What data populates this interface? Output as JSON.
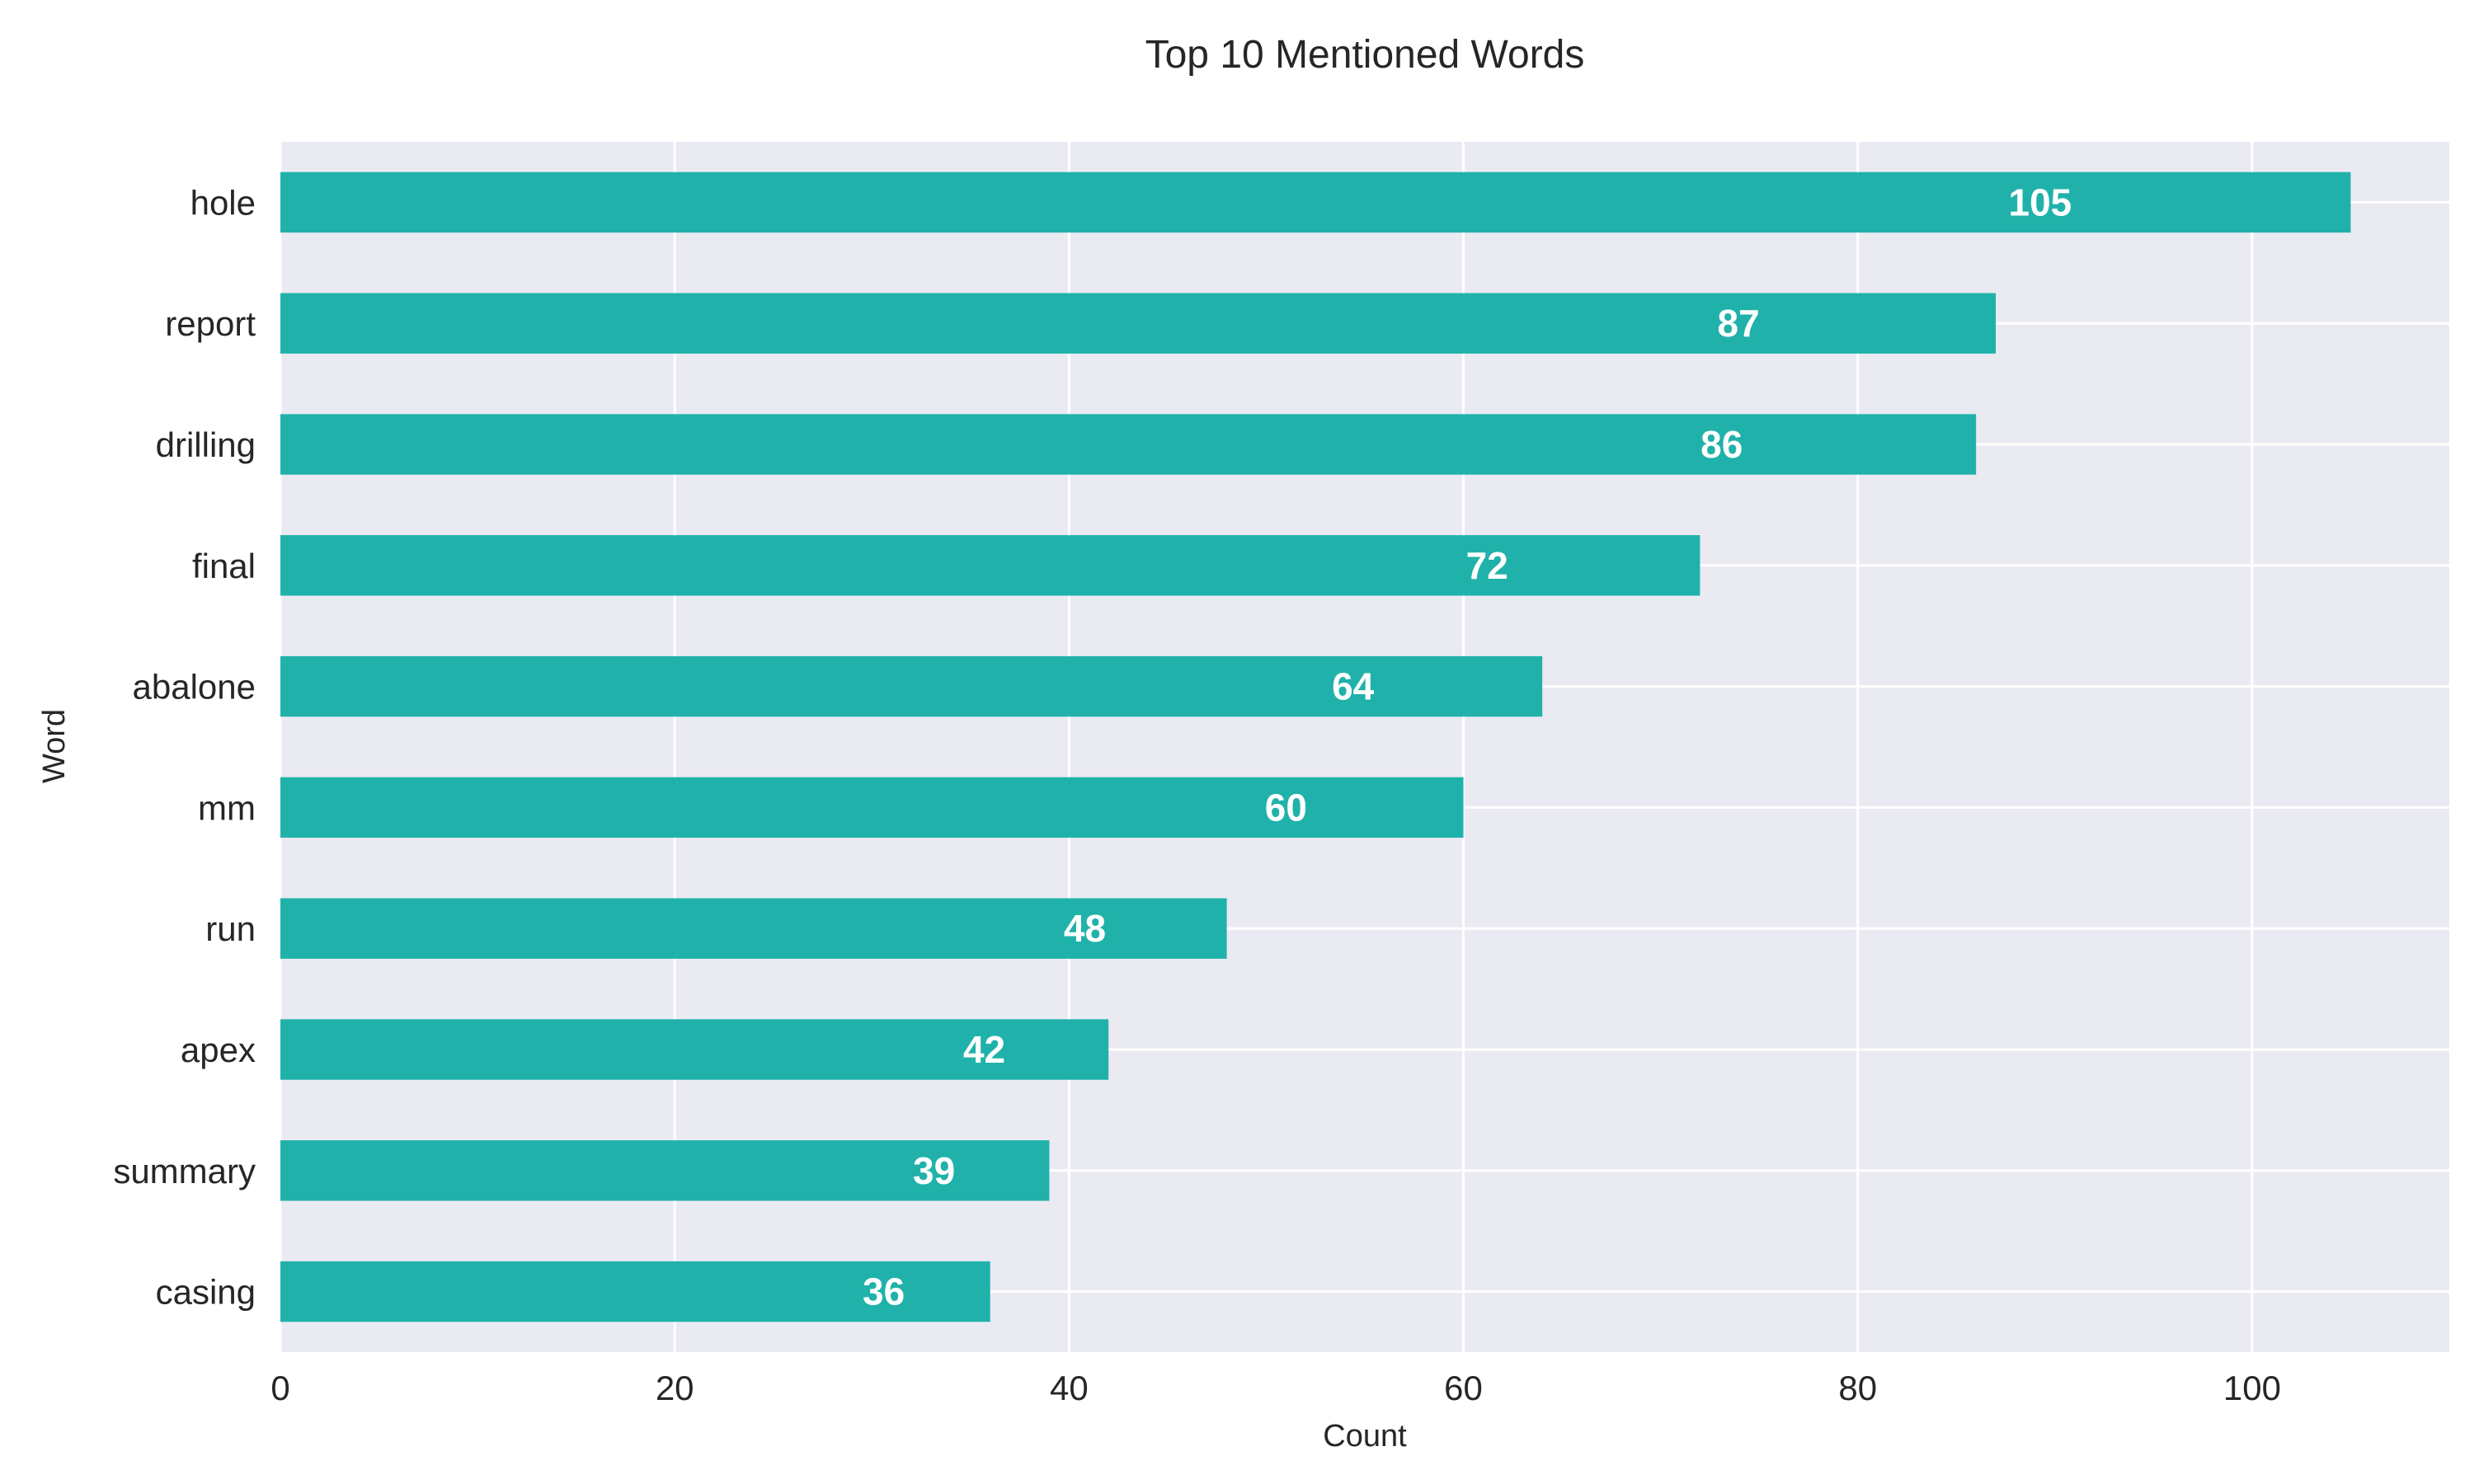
{
  "chart_data": {
    "type": "bar",
    "orientation": "horizontal",
    "title": "Top 10 Mentioned Words",
    "xlabel": "Count",
    "ylabel": "Word",
    "categories": [
      "hole",
      "report",
      "drilling",
      "final",
      "abalone",
      "mm",
      "run",
      "apex",
      "summary",
      "casing"
    ],
    "values": [
      105,
      87,
      86,
      72,
      64,
      60,
      48,
      42,
      39,
      36
    ],
    "xlim": [
      0,
      110
    ],
    "xticks": [
      0,
      20,
      40,
      60,
      80,
      100
    ],
    "grid": true,
    "legend": "none",
    "colors": {
      "bar": "#20b2aa",
      "plot_background": "#eaeaf2",
      "grid": "#ffffff",
      "bar_label": "#ffffff"
    }
  }
}
